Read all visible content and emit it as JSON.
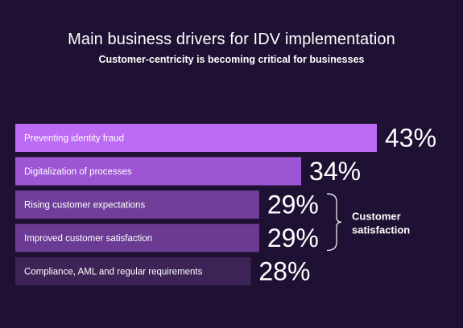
{
  "chart_data": {
    "type": "bar",
    "orientation": "horizontal",
    "title": "Main business drivers for IDV implementation",
    "subtitle": "Customer-centricity is becoming critical for businesses",
    "categories": [
      "Preventing identity fraud",
      "Digitalization of processes",
      "Rising customer expectations",
      "Improved customer satisfaction",
      "Compliance, AML and regular requirements"
    ],
    "values": [
      43,
      34,
      29,
      29,
      28
    ],
    "value_labels": [
      "43%",
      "34%",
      "29%",
      "29%",
      "28%"
    ],
    "unit": "%",
    "xlim": [
      0,
      43
    ],
    "grid": false,
    "legend": "none",
    "bar_colors": [
      "#bd6bf5",
      "#9e55d4",
      "#6f3f99",
      "#6b3b94",
      "#3c2456"
    ],
    "annotation": {
      "text_lines": [
        "Customer",
        "satisfaction"
      ],
      "groups_categories": [
        "Rising customer expectations",
        "Improved customer satisfaction"
      ]
    }
  }
}
